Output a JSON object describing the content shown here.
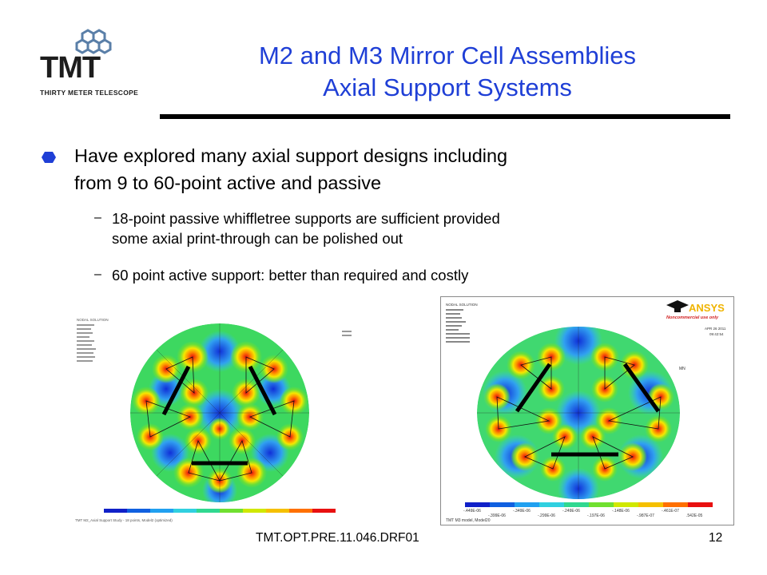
{
  "logo": {
    "text": "TMT",
    "subtitle": "THIRTY METER TELESCOPE",
    "icon": "hexagon-segments-icon",
    "color": "#1d1d1d"
  },
  "title": {
    "line1": "M2 and M3 Mirror Cell Assemblies",
    "line2": "Axial Support Systems",
    "color": "#1f3fd6"
  },
  "bullets": [
    {
      "text_line1": "Have explored many axial support designs including",
      "text_line2": "from  9 to 60-point active and passive",
      "sub": [
        {
          "line1": "18-point passive whiffletree supports are sufficient provided",
          "line2": "some axial print-through can be polished out"
        },
        {
          "line1": "60 point active support: better than required and costly",
          "line2": ""
        }
      ]
    }
  ],
  "figures": {
    "left": {
      "caption": "TMT M2_Axial Support Study - 18 points, Model2 (optimized)",
      "header": "NODAL SOLUTION"
    },
    "right": {
      "header": "NODAL SOLUTION",
      "brand": "ANSYS",
      "brand_sub": "Noncommercial use only",
      "date": "APR 26 2011",
      "time": "09:42:54",
      "mn": "MN",
      "caption": "TMT M3 model, Model20",
      "legend": [
        "-.449E-06",
        "-.399E-06",
        "-.349E-06",
        "-.299E-06",
        "-.249E-06",
        "-.197E-06",
        "-.148E-06",
        "-.987E-07",
        "-.461E-07",
        ".542E-05"
      ]
    }
  },
  "footer": {
    "doc_id": "TMT.OPT.PRE.11.046.DRF01",
    "page": "12"
  }
}
